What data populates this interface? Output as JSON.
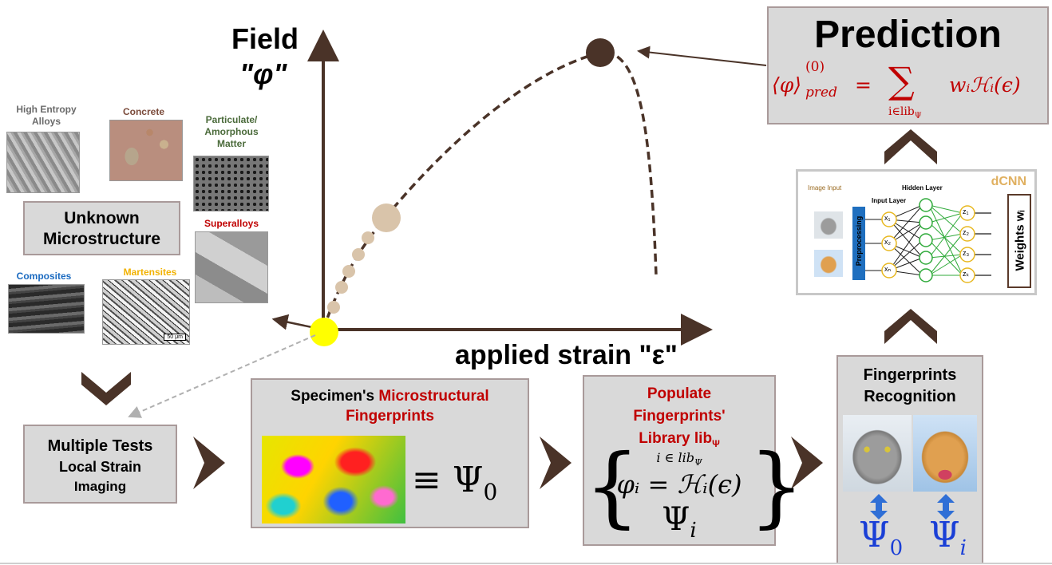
{
  "colors": {
    "arrow_brown": "#4a3328",
    "box_fill": "#d9d9d9",
    "box_border": "#a99a9a",
    "accent_red": "#c00000",
    "psi_blue": "#1a3fd6",
    "yellow_point": "#ffff00",
    "tan_point": "#d9c4aa",
    "peak_point": "#4a3328"
  },
  "plot": {
    "y_label_line1": "Field",
    "y_label_line2": "\"φ\"",
    "x_label": "applied strain \"ε\""
  },
  "materials": {
    "high_entropy": "High Entropy Alloys",
    "concrete": "Concrete",
    "particulate": "Particulate/ Amorphous Matter",
    "superalloys": "Superalloys",
    "composites": "Composites",
    "martensites": "Martensites",
    "scale_bar": "50 μm"
  },
  "unknown_box": {
    "line1": "Unknown",
    "line2": "Microstructure"
  },
  "tests_box": {
    "line1": "Multiple Tests",
    "line2": "Local Strain",
    "line3": "Imaging"
  },
  "specimen_box": {
    "prefix": "Specimen's ",
    "highlight1": "Microstructural",
    "highlight2": "Fingerprints",
    "equiv": "≡ Ψ",
    "sub": "0"
  },
  "library_box": {
    "line1": "Populate",
    "line2": "Fingerprints'",
    "line3": "Library lib",
    "line3_sub": "Ψ",
    "index": "i ∈ lib",
    "index_sub": "Ψ",
    "formula": "φᵢ = ℋᵢ(ϵ)",
    "psi": "Ψ",
    "psi_sub": "i"
  },
  "recognition_box": {
    "line1": "Fingerprints",
    "line2": "Recognition",
    "psi0": "Ψ",
    "psi0_sub": "0",
    "psii": "Ψ",
    "psii_sub": "i"
  },
  "prediction_box": {
    "title": "Prediction",
    "lhs": "⟨φ⟩",
    "lhs_sup": "(0)",
    "lhs_sub": "pred",
    "eq": "=",
    "sum": "∑",
    "sum_sub": "i∈lib",
    "sum_sub_sub": "Ψ",
    "rhs": "wᵢℋᵢ(ϵ)"
  },
  "cnn": {
    "badge": "dCNN",
    "image_input": "Image Input",
    "input_layer": "Input Layer",
    "hidden_layer": "Hidden Layer",
    "preprocessing": "Preprocessing",
    "weights": "Weights wᵢ",
    "x_nodes": [
      "x₁",
      "x₂",
      "xₙ"
    ],
    "z_nodes": [
      "z₁",
      "z₂",
      "z₃",
      "zₖ"
    ]
  }
}
